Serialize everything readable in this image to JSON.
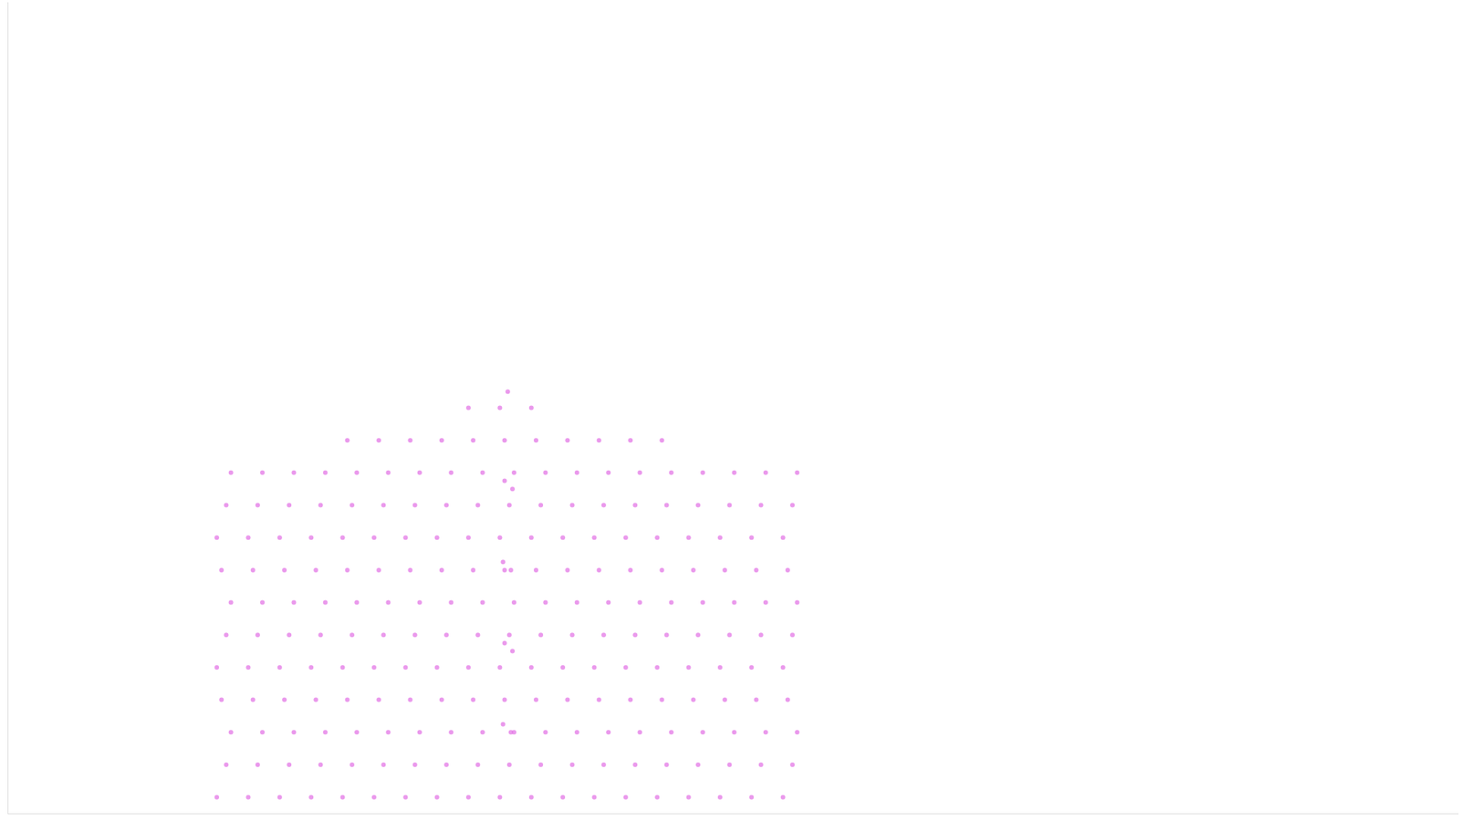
{
  "chart_data": {
    "type": "scatter",
    "color": "#e377e6",
    "grid": false,
    "tick_labels": false,
    "xlim": [
      -6.9,
      39.2
    ],
    "ylim": [
      0,
      100
    ],
    "x": [
      -0.25,
      0.05,
      0.2,
      -0.1,
      -0.25,
      0.05,
      0.2,
      -0.1,
      -0.25,
      0.05,
      0.2,
      0.75,
      1.05,
      1.2,
      0.9,
      0.75,
      1.05,
      1.2,
      0.9,
      0.75,
      1.05,
      1.2,
      1.75,
      2.05,
      2.2,
      1.9,
      1.75,
      2.05,
      2.2,
      1.9,
      1.75,
      2.05,
      2.2,
      2.75,
      3.05,
      3.2,
      2.9,
      2.75,
      3.05,
      3.2,
      2.9,
      2.75,
      3.05,
      3.2,
      3.75,
      4.05,
      4.2,
      3.9,
      3.75,
      4.05,
      4.2,
      3.9,
      3.75,
      4.05,
      4.2,
      3.9,
      4.75,
      5.05,
      5.2,
      4.9,
      4.75,
      5.05,
      5.2,
      4.9,
      4.75,
      5.05,
      5.2,
      4.9,
      5.75,
      6.05,
      6.2,
      5.9,
      5.75,
      6.05,
      6.2,
      5.9,
      5.75,
      6.05,
      6.2,
      5.9,
      6.75,
      7.05,
      7.2,
      6.9,
      6.75,
      7.05,
      7.2,
      6.9,
      6.75,
      7.05,
      7.2,
      6.9,
      7.75,
      8.05,
      8.2,
      7.9,
      7.75,
      8.05,
      8.2,
      7.9,
      7.75,
      8.05,
      8.2,
      7.9,
      7.75,
      8.75,
      9.05,
      9.2,
      8.9,
      8.75,
      9.05,
      9.2,
      8.9,
      8.75,
      9.05,
      9.2,
      8.9,
      8.75,
      9,
      9.1,
      8.85,
      9.15,
      8.9,
      9.1,
      8.85,
      9.15,
      8.9,
      9.75,
      10.05,
      10.2,
      9.9,
      9.75,
      10.05,
      10.2,
      9.9,
      9.75,
      10.05,
      10.2,
      9.9,
      9.75,
      10.75,
      11.05,
      11.2,
      10.9,
      10.75,
      11.05,
      11.2,
      10.9,
      10.75,
      11.05,
      11.2,
      10.9,
      11.75,
      12.05,
      12.2,
      11.9,
      11.75,
      12.05,
      12.2,
      11.9,
      11.75,
      12.05,
      12.2,
      11.9,
      12.75,
      13.05,
      13.2,
      12.9,
      12.75,
      13.05,
      13.2,
      12.9,
      12.75,
      13.05,
      13.2,
      12.9,
      13.75,
      14.05,
      14.2,
      13.9,
      13.75,
      14.05,
      14.2,
      13.9,
      13.75,
      14.05,
      14.2,
      13.9,
      14.75,
      15.05,
      15.2,
      14.9,
      14.75,
      15.05,
      15.2,
      14.9,
      14.75,
      15.05,
      15.2,
      15.75,
      16.05,
      16.2,
      15.9,
      15.75,
      16.05,
      16.2,
      15.9,
      15.75,
      16.05,
      16.2,
      16.75,
      17.05,
      17.2,
      16.9,
      16.75,
      17.05,
      17.2,
      16.9,
      16.75,
      17.05,
      17.2,
      17.75,
      18.05,
      18.2,
      17.9,
      17.75,
      18.05,
      18.2,
      17.9,
      17.75,
      18.05,
      18.2
    ],
    "values": [
      2,
      6,
      10,
      14,
      18,
      22,
      26,
      30,
      34,
      38,
      42,
      2,
      6,
      10,
      14,
      18,
      22,
      26,
      30,
      34,
      38,
      42,
      2,
      6,
      10,
      14,
      18,
      22,
      26,
      30,
      34,
      38,
      42,
      2,
      6,
      10,
      14,
      18,
      22,
      26,
      30,
      34,
      38,
      42,
      2,
      6,
      10,
      14,
      18,
      22,
      26,
      30,
      34,
      38,
      42,
      46,
      2,
      6,
      10,
      14,
      18,
      22,
      26,
      30,
      34,
      38,
      42,
      46,
      2,
      6,
      10,
      14,
      18,
      22,
      26,
      30,
      34,
      38,
      42,
      46,
      2,
      6,
      10,
      14,
      18,
      22,
      26,
      30,
      34,
      38,
      42,
      46,
      2,
      6,
      10,
      14,
      18,
      22,
      26,
      30,
      34,
      38,
      42,
      46,
      50,
      2,
      6,
      10,
      14,
      18,
      22,
      26,
      30,
      34,
      38,
      42,
      46,
      50,
      52,
      10,
      11,
      20,
      21,
      30,
      31,
      40,
      41,
      2,
      6,
      10,
      14,
      18,
      22,
      26,
      30,
      34,
      38,
      42,
      46,
      50,
      2,
      6,
      10,
      14,
      18,
      22,
      26,
      30,
      34,
      38,
      42,
      46,
      2,
      6,
      10,
      14,
      18,
      22,
      26,
      30,
      34,
      38,
      42,
      46,
      2,
      6,
      10,
      14,
      18,
      22,
      26,
      30,
      34,
      38,
      42,
      46,
      2,
      6,
      10,
      14,
      18,
      22,
      26,
      30,
      34,
      38,
      42,
      46,
      2,
      6,
      10,
      14,
      18,
      22,
      26,
      30,
      34,
      38,
      42,
      2,
      6,
      10,
      14,
      18,
      22,
      26,
      30,
      34,
      38,
      42,
      2,
      6,
      10,
      14,
      18,
      22,
      26,
      30,
      34,
      38,
      42,
      2,
      6,
      10,
      14,
      18,
      22,
      26,
      30,
      34,
      38,
      42
    ]
  }
}
